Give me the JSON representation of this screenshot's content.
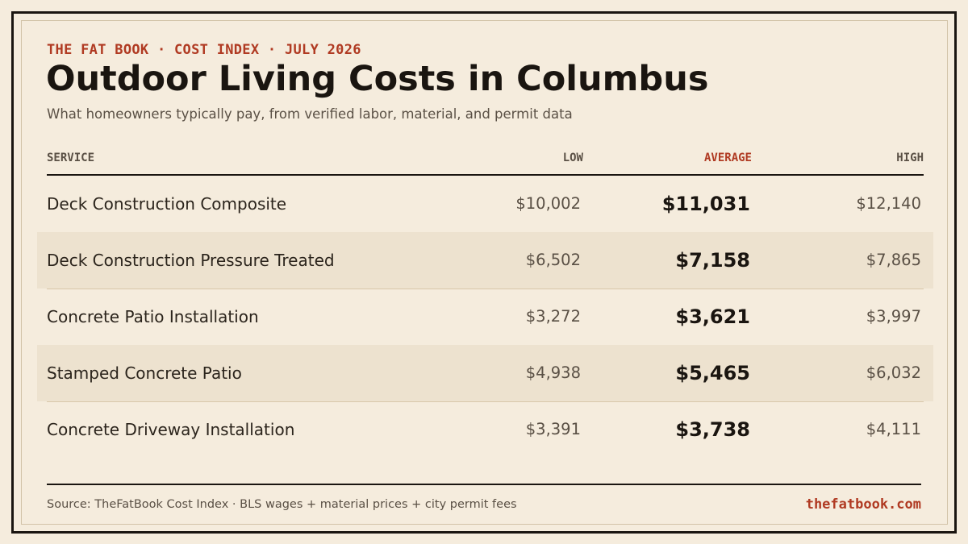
{
  "header": {
    "eyebrow": "THE FAT BOOK · COST INDEX · JULY 2026",
    "title": "Outdoor Living Costs in Columbus",
    "subtitle": "What homeowners typically pay, from verified labor, material, and permit data"
  },
  "table": {
    "columns": {
      "service": "SERVICE",
      "low": "LOW",
      "average": "AVERAGE",
      "high": "HIGH"
    },
    "rows": [
      {
        "service": "Deck Construction Composite",
        "low": "$10,002",
        "average": "$11,031",
        "high": "$12,140"
      },
      {
        "service": "Deck Construction Pressure Treated",
        "low": "$6,502",
        "average": "$7,158",
        "high": "$7,865"
      },
      {
        "service": "Concrete Patio Installation",
        "low": "$3,272",
        "average": "$3,621",
        "high": "$3,997"
      },
      {
        "service": "Stamped Concrete Patio",
        "low": "$4,938",
        "average": "$5,465",
        "high": "$6,032"
      },
      {
        "service": "Concrete Driveway Installation",
        "low": "$3,391",
        "average": "$3,738",
        "high": "$4,111"
      }
    ]
  },
  "footer": {
    "source": "Source: TheFatBook Cost Index · BLS wages + material prices + city permit fees",
    "site": "thefatbook.com"
  },
  "colors": {
    "background": "#f5ecdd",
    "accent": "#b03a22",
    "ink": "#1a1510",
    "alt_row": "#ede2cf"
  }
}
